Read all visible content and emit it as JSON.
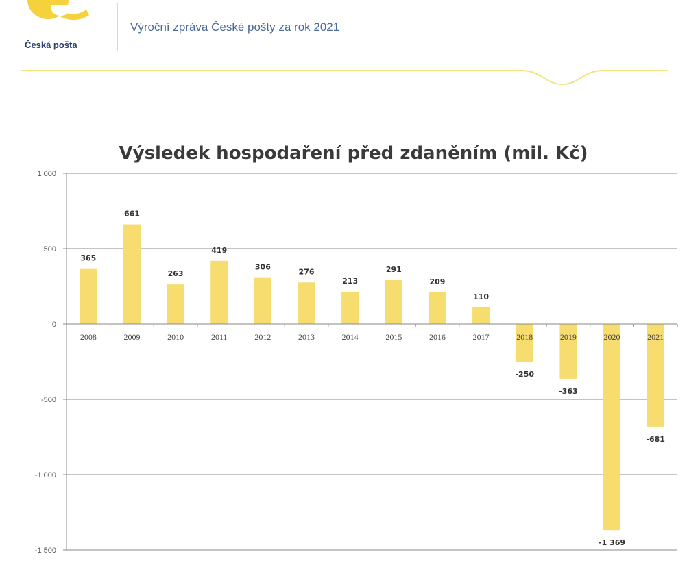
{
  "header": {
    "logo_text": "Česká pošta",
    "report_title": "Výroční zpráva České pošty za rok 2021",
    "brand_color": "#f5d23c"
  },
  "chart_data": {
    "type": "bar",
    "title": "Výsledek hospodaření před zdaněním (mil. Kč)",
    "categories": [
      "2008",
      "2009",
      "2010",
      "2011",
      "2012",
      "2013",
      "2014",
      "2015",
      "2016",
      "2017",
      "2018",
      "2019",
      "2020",
      "2021"
    ],
    "values": [
      365,
      661,
      263,
      419,
      306,
      276,
      213,
      291,
      209,
      110,
      -250,
      -363,
      -1369,
      -681
    ],
    "value_labels": [
      "365",
      "661",
      "263",
      "419",
      "306",
      "276",
      "213",
      "291",
      "209",
      "110",
      "-250",
      "-363",
      "-1 369",
      "-681"
    ],
    "ylim": [
      -1500,
      1000
    ],
    "yticks": [
      1000,
      500,
      0,
      -500,
      -1000,
      -1500
    ],
    "ytick_labels": [
      "1 000",
      "500",
      "0",
      "-500",
      "-1 000",
      "-1 500"
    ],
    "grid": true,
    "bar_color": "#f7dc6f"
  }
}
